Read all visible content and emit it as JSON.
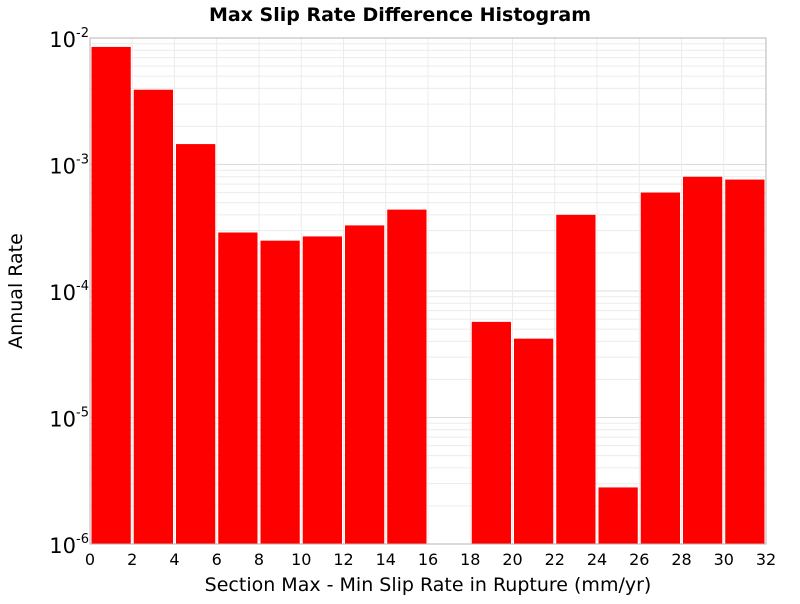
{
  "chart_data": {
    "type": "bar",
    "title": "Max Slip Rate Difference Histogram",
    "xlabel": "Section Max - Min Slip Rate in Rupture (mm/yr)",
    "ylabel": "Annual Rate",
    "xlim": [
      0,
      32
    ],
    "ylim": [
      1e-06,
      0.01
    ],
    "yscale": "log",
    "grid": true,
    "bar_color": "#ff0000",
    "xticks": [
      0,
      2,
      4,
      6,
      8,
      10,
      12,
      14,
      16,
      18,
      20,
      22,
      24,
      26,
      28,
      30,
      32
    ],
    "yticks": [
      {
        "value": 1e-06,
        "base": "10",
        "exp": "-6"
      },
      {
        "value": 1e-05,
        "base": "10",
        "exp": "-5"
      },
      {
        "value": 0.0001,
        "base": "10",
        "exp": "-4"
      },
      {
        "value": 0.001,
        "base": "10",
        "exp": "-3"
      },
      {
        "value": 0.01,
        "base": "10",
        "exp": "-2"
      }
    ],
    "bars": [
      {
        "x": 1,
        "value": 0.0085
      },
      {
        "x": 3,
        "value": 0.0039
      },
      {
        "x": 5,
        "value": 0.00145
      },
      {
        "x": 7,
        "value": 0.00029
      },
      {
        "x": 9,
        "value": 0.00025
      },
      {
        "x": 11,
        "value": 0.00027
      },
      {
        "x": 13,
        "value": 0.00033
      },
      {
        "x": 15,
        "value": 0.00044
      },
      {
        "x": 17,
        "value": null
      },
      {
        "x": 19,
        "value": 5.7e-05
      },
      {
        "x": 21,
        "value": 4.2e-05
      },
      {
        "x": 23,
        "value": 0.0004
      },
      {
        "x": 25,
        "value": 2.8e-06
      },
      {
        "x": 27,
        "value": 0.0006
      },
      {
        "x": 29,
        "value": 0.0008
      },
      {
        "x": 31,
        "value": 0.00076
      }
    ]
  }
}
